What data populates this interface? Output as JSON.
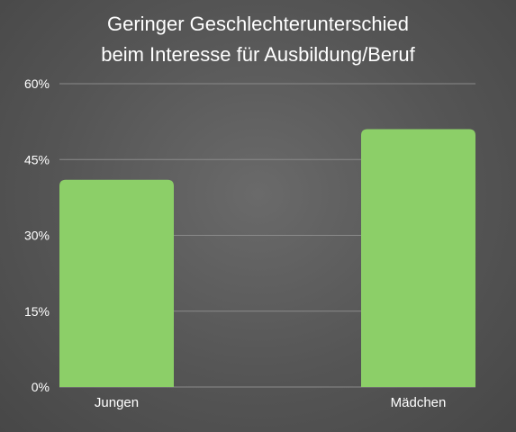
{
  "chart_data": {
    "type": "bar",
    "title_lines": [
      "Geringer Geschlechterunterschied",
      "beim Interesse für Ausbildung/Beruf"
    ],
    "categories": [
      "Jungen",
      "Mädchen"
    ],
    "values": [
      41,
      51
    ],
    "ylim": [
      0,
      60
    ],
    "yticks": [
      0,
      15,
      30,
      45,
      60
    ],
    "ytick_labels": [
      "0%",
      "15%",
      "30%",
      "45%",
      "60%"
    ],
    "grid": true,
    "bar_color": "#8ccf68",
    "grid_color": "#8a8a8a"
  }
}
